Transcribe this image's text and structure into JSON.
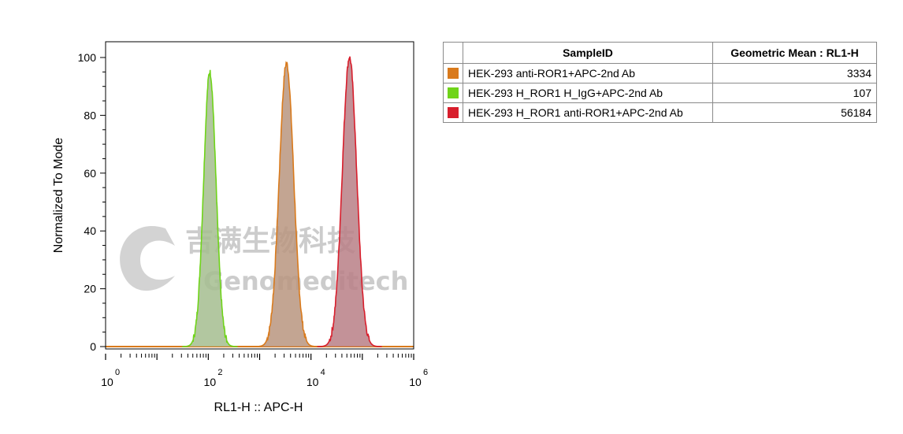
{
  "chart_data": {
    "type": "area",
    "title": "",
    "xlabel": "RL1-H :: APC-H",
    "ylabel": "Normalized To Mode",
    "x_scale": "log10",
    "xlim": [
      1,
      1000000
    ],
    "ylim": [
      0,
      100
    ],
    "x_ticks": [
      {
        "base": "10",
        "exp": "0",
        "value": 1
      },
      {
        "base": "10",
        "exp": "2",
        "value": 100
      },
      {
        "base": "10",
        "exp": "4",
        "value": 10000
      },
      {
        "base": "10",
        "exp": "6",
        "value": 1000000
      }
    ],
    "y_ticks": [
      "0",
      "20",
      "40",
      "60",
      "80",
      "100"
    ],
    "grid": false,
    "series": [
      {
        "name": "HEK-293 anti-ROR1+APC-2nd Ab",
        "color": "#d97a1c",
        "fill": "#b8957f",
        "peak_x": 3334,
        "peak_y": 98,
        "width_decades": 0.14
      },
      {
        "name": "HEK-293 H_ROR1 H_IgG+APC-2nd Ab",
        "color": "#6fd419",
        "fill": "#a5bd8f",
        "peak_x": 107,
        "peak_y": 95,
        "width_decades": 0.12
      },
      {
        "name": "HEK-293 H_ROR1 anti-ROR1+APC-2nd Ab",
        "color": "#d81e2c",
        "fill": "#b97f86",
        "peak_x": 56184,
        "peak_y": 100,
        "width_decades": 0.14
      }
    ]
  },
  "watermark": {
    "chinese": "吉满生物科技",
    "english": "Genomeditech"
  },
  "legend_table": {
    "headers": {
      "swatch": "",
      "sample": "SampleID",
      "mean": "Geometric Mean : RL1-H"
    },
    "rows": [
      {
        "sample": "HEK-293 anti-ROR1+APC-2nd Ab",
        "mean": "3334",
        "color": "#d97a1c"
      },
      {
        "sample": "HEK-293 H_ROR1 H_IgG+APC-2nd Ab",
        "mean": "107",
        "color": "#6fd419"
      },
      {
        "sample": "HEK-293 H_ROR1 anti-ROR1+APC-2nd Ab",
        "mean": "56184",
        "color": "#d81e2c"
      }
    ]
  }
}
